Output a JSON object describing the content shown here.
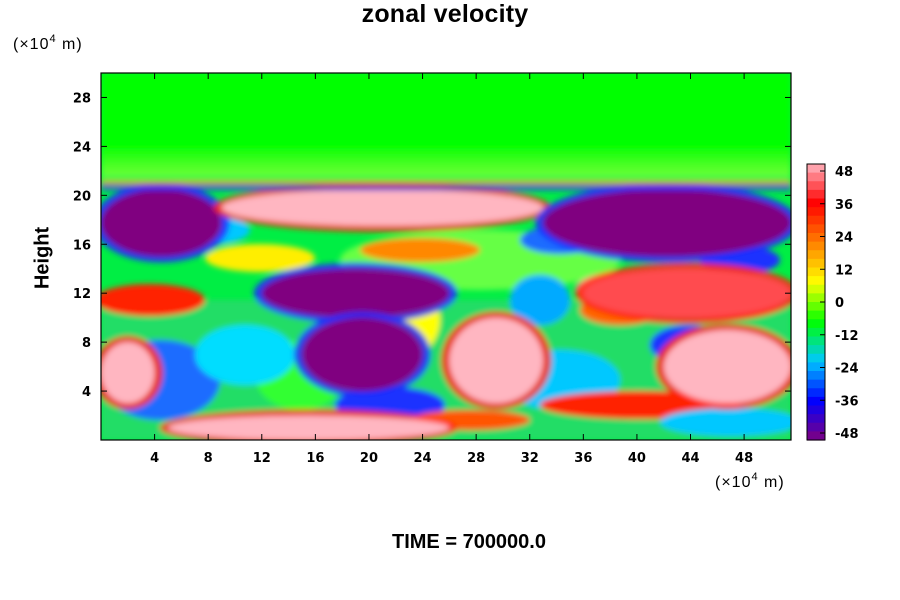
{
  "chart_data": {
    "type": "heatmap",
    "title": "zonal velocity",
    "xlabel": "",
    "ylabel": "Height",
    "x_unit": "(×10⁴ m)",
    "y_unit": "(×10⁴ m)",
    "xlim": [
      0,
      51.5
    ],
    "ylim": [
      0,
      30
    ],
    "x_ticks": [
      "4",
      "8",
      "12",
      "16",
      "20",
      "24",
      "28",
      "32",
      "36",
      "40",
      "44",
      "48"
    ],
    "y_ticks": [
      "4",
      "8",
      "12",
      "16",
      "20",
      "24",
      "28"
    ],
    "colorbar": {
      "min": -48,
      "max": 48,
      "ticks": [
        "48",
        "36",
        "24",
        "12",
        "0",
        "-12",
        "-24",
        "-36",
        "-48"
      ],
      "colors": [
        "#800080",
        "#0000ff",
        "#00c8ff",
        "#00ff00",
        "#ffff00",
        "#ff8000",
        "#ff0000",
        "#ffb6c1"
      ]
    },
    "footer": "TIME = 700000.0",
    "fields": [
      {
        "region": "upper layer",
        "x_range": [
          0,
          51.5
        ],
        "y_range": [
          21,
          30
        ],
        "value": -6
      },
      {
        "region": "strong negative, left",
        "x_range": [
          0,
          9
        ],
        "y_range": [
          15,
          20.5
        ],
        "value": -48
      },
      {
        "region": "strong positive jet",
        "x_range": [
          9,
          33
        ],
        "y_range": [
          17.5,
          20.5
        ],
        "value": 48
      },
      {
        "region": "strong negative, right",
        "x_range": [
          33,
          51.5
        ],
        "y_range": [
          15,
          20.5
        ],
        "value": -48
      },
      {
        "region": "strong negative, mid",
        "x_range": [
          12,
          26
        ],
        "y_range": [
          10,
          14
        ],
        "value": -48
      },
      {
        "region": "positive, right",
        "x_range": [
          36,
          51.5
        ],
        "y_range": [
          10,
          14
        ],
        "value": 40
      },
      {
        "region": "strong negative core",
        "x_range": [
          15,
          24
        ],
        "y_range": [
          4,
          10
        ],
        "value": -48
      },
      {
        "region": "strong positive core",
        "x_range": [
          26,
          33
        ],
        "y_range": [
          3,
          10
        ],
        "value": 48
      },
      {
        "region": "strong positive, lower right",
        "x_range": [
          42,
          51.5
        ],
        "y_range": [
          3,
          9
        ],
        "value": 48
      },
      {
        "region": "strong positive, lower left",
        "x_range": [
          0,
          4
        ],
        "y_range": [
          3,
          8
        ],
        "value": 48
      },
      {
        "region": "strong positive, bottom",
        "x_range": [
          5,
          26
        ],
        "y_range": [
          0,
          2
        ],
        "value": 48
      }
    ]
  }
}
